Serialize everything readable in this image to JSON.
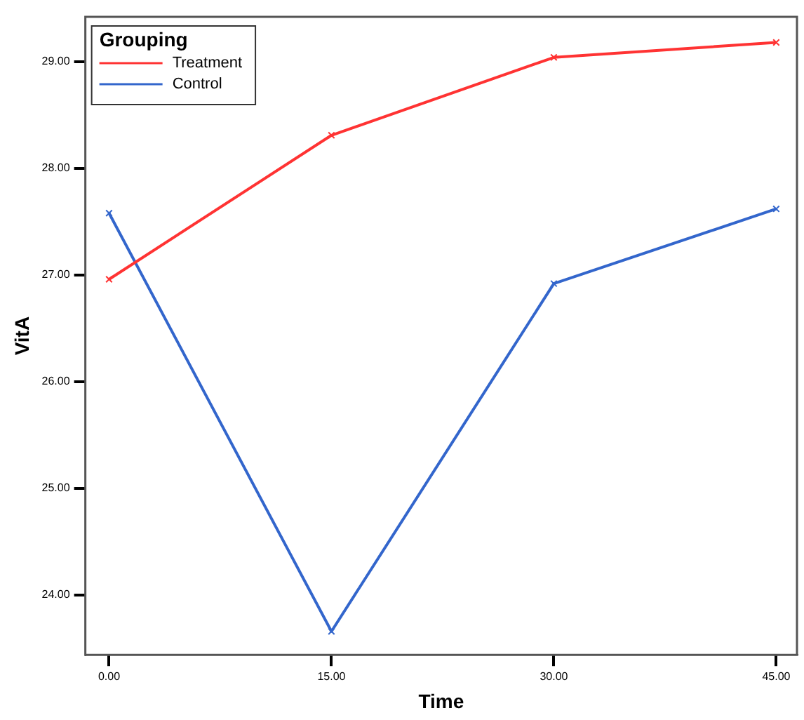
{
  "chart_data": {
    "type": "line",
    "xlabel": "Time",
    "ylabel": "VitA",
    "legend_title": "Grouping",
    "legend": "top left",
    "marker": "cross",
    "grid": false,
    "x": [
      0,
      15,
      30,
      45
    ],
    "xlim": [
      -1.6,
      46.4
    ],
    "xticks": [
      {
        "value": 0,
        "label": "0.00"
      },
      {
        "value": 15,
        "label": "15.00"
      },
      {
        "value": 30,
        "label": "30.00"
      },
      {
        "value": 45,
        "label": "45.00"
      }
    ],
    "ylim": [
      23.44,
      29.42
    ],
    "yticks": [
      {
        "value": 24,
        "label": "24.00"
      },
      {
        "value": 25,
        "label": "25.00"
      },
      {
        "value": 26,
        "label": "26.00"
      },
      {
        "value": 27,
        "label": "27.00"
      },
      {
        "value": 28,
        "label": "28.00"
      },
      {
        "value": 29,
        "label": "29.00"
      }
    ],
    "series": [
      {
        "name": "Treatment",
        "color": "#ff3333",
        "values": [
          26.96,
          28.31,
          29.04,
          29.18
        ]
      },
      {
        "name": "Control",
        "color": "#3366cc",
        "values": [
          27.58,
          23.66,
          26.92,
          27.62
        ]
      }
    ]
  }
}
